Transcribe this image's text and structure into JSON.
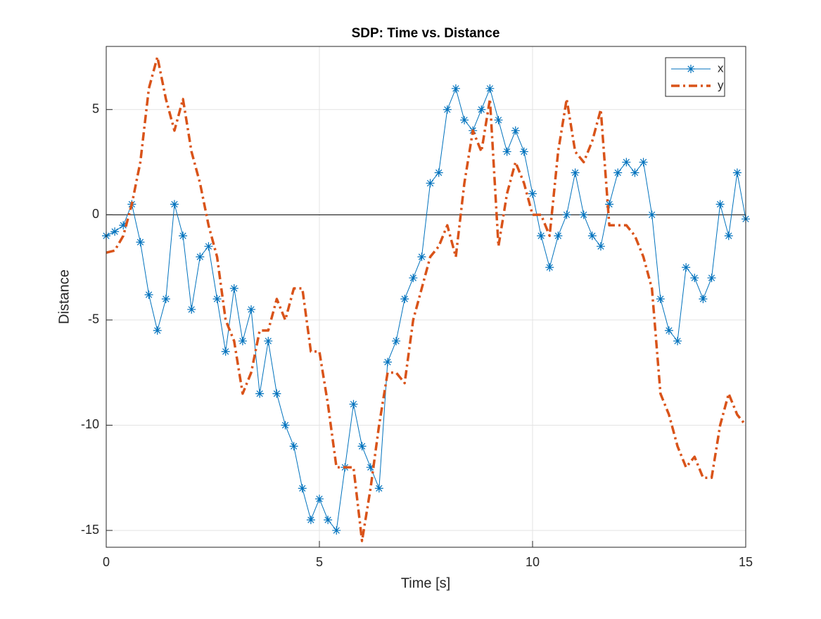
{
  "chart_data": {
    "type": "line",
    "title": "SDP: Time vs. Distance",
    "x_label": "Time [s]",
    "y_label": "Distance",
    "x": [
      0,
      0.2,
      0.4,
      0.6,
      0.8,
      1,
      1.2,
      1.4,
      1.6,
      1.8,
      2,
      2.2,
      2.4,
      2.6,
      2.8,
      3,
      3.2,
      3.4,
      3.6,
      3.8,
      4,
      4.2,
      4.4,
      4.6,
      4.8,
      5,
      5.2,
      5.4,
      5.6,
      5.8,
      6,
      6.2,
      6.4,
      6.6,
      6.8,
      7,
      7.2,
      7.4,
      7.6,
      7.8,
      8,
      8.2,
      8.4,
      8.6,
      8.8,
      9,
      9.2,
      9.4,
      9.6,
      9.8,
      10,
      10.2,
      10.4,
      10.6,
      10.8,
      11,
      11.2,
      11.4,
      11.6,
      11.8,
      12,
      12.2,
      12.4,
      12.6,
      12.8,
      13,
      13.2,
      13.4,
      13.6,
      13.8,
      14,
      14.2,
      14.4,
      14.6,
      14.8,
      15
    ],
    "series": [
      {
        "name": "x",
        "color": "#0072BD",
        "marker": "asterisk",
        "line_style": "solid",
        "values": [
          -1,
          -0.8,
          -0.5,
          0.5,
          -1.3,
          -3.8,
          -5.5,
          -4,
          0.5,
          -1,
          -4.5,
          -2,
          -1.5,
          -4,
          -6.5,
          -3.5,
          -6,
          -4.5,
          -8.5,
          -6,
          -8.5,
          -10,
          -11,
          -13,
          -14.5,
          -13.5,
          -14.5,
          -15,
          -12,
          -9,
          -11,
          -12,
          -13,
          -7,
          -6,
          -4,
          -3,
          -2,
          1.5,
          2,
          5,
          6,
          4.5,
          4,
          5,
          6,
          4.5,
          3,
          4,
          3,
          1,
          -1,
          -2.5,
          -1,
          0,
          2,
          0,
          -1,
          -1.5,
          0.5,
          2,
          2.5,
          2,
          2.5,
          0,
          -4,
          -5.5,
          -6,
          -2.5,
          -3,
          -4,
          -3,
          0.5,
          -1,
          2,
          -0.2
        ]
      },
      {
        "name": "y",
        "color": "#D95319",
        "marker": "none",
        "line_style": "dashdot",
        "values": [
          -1.8,
          -1.7,
          -1,
          0.5,
          2.5,
          6,
          7.5,
          5.5,
          4,
          5.5,
          3,
          1.5,
          -0.5,
          -2,
          -5,
          -6,
          -8.5,
          -7.5,
          -5.5,
          -5.5,
          -4,
          -5,
          -3.5,
          -3.5,
          -6.5,
          -6.5,
          -9,
          -12,
          -12,
          -12,
          -15.5,
          -13,
          -10,
          -7.5,
          -7.5,
          -8,
          -5,
          -3.5,
          -2,
          -1.5,
          -0.5,
          -2,
          1.5,
          4,
          3,
          5.5,
          -1.5,
          1,
          2.5,
          1.5,
          0,
          0,
          -1,
          3,
          5.5,
          3,
          2.5,
          3.5,
          5,
          -0.5,
          -0.5,
          -0.5,
          -1,
          -2,
          -3.5,
          -8.5,
          -9.5,
          -11,
          -12,
          -11.5,
          -12.5,
          -12.5,
          -10,
          -8.5,
          -9.5,
          -10
        ]
      }
    ],
    "xlim": [
      0,
      15
    ],
    "ylim": [
      -15.8,
      8
    ],
    "xticks": [
      0,
      5,
      10,
      15
    ],
    "yticks": [
      -15,
      -10,
      -5,
      0,
      5
    ],
    "grid": true,
    "legend": "northeast"
  }
}
